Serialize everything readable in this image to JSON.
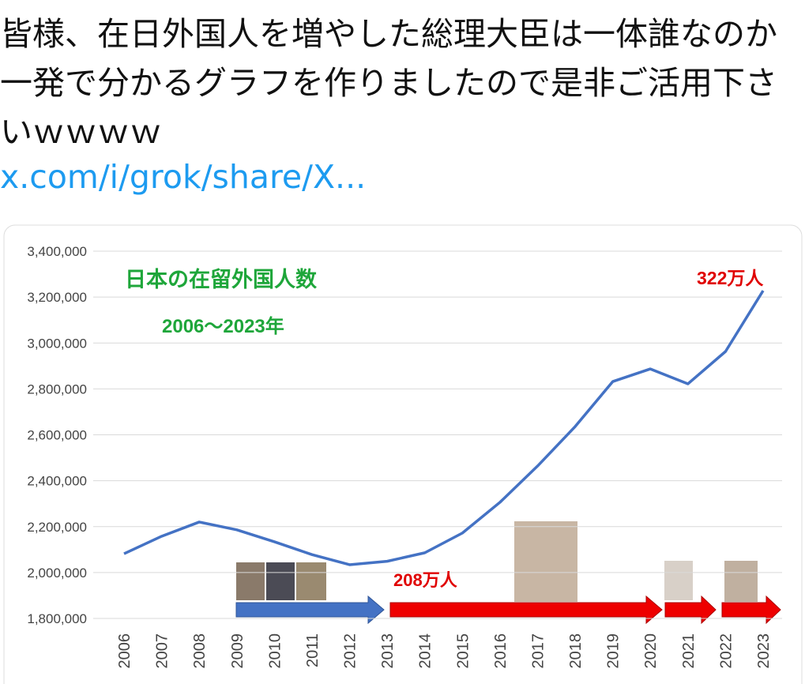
{
  "post": {
    "text": "皆様、在日外国人を増やした総理大臣は一体誰なのか一発で分かるグラフを作りましたので是非ご活用下さいｗｗｗｗ",
    "link": "x.com/i/grok/share/X..."
  },
  "chart_data": {
    "type": "line",
    "annotations": [
      "日本の在留外国人数",
      "2006〜2023年",
      "322万人",
      "208万人"
    ],
    "categories": [
      "2006",
      "2007",
      "2008",
      "2009",
      "2010",
      "2011",
      "2012",
      "2013",
      "2014",
      "2015",
      "2016",
      "2017",
      "2018",
      "2019",
      "2020",
      "2021",
      "2022",
      "2023"
    ],
    "series": [
      {
        "color": "#4472c4",
        "values": [
          2082000,
          2158000,
          2220000,
          2186000,
          2134000,
          2078000,
          2034000,
          2049000,
          2086000,
          2172000,
          2306000,
          2464000,
          2636000,
          2832000,
          2887000,
          2822000,
          2963000,
          3228000
        ]
      }
    ],
    "ylim": [
      1800000,
      3400000
    ],
    "yticks": [
      {
        "value": 1800000,
        "label": "1,800,000"
      },
      {
        "value": 2000000,
        "label": "2,000,000"
      },
      {
        "value": 2200000,
        "label": "2,200,000"
      },
      {
        "value": 2400000,
        "label": "2,400,000"
      },
      {
        "value": 2600000,
        "label": "2,600,000"
      },
      {
        "value": 2800000,
        "label": "2,800,000"
      },
      {
        "value": 3000000,
        "label": "3,000,000"
      },
      {
        "value": 3200000,
        "label": "3,200,000"
      },
      {
        "value": 3400000,
        "label": "3,400,000"
      }
    ],
    "grid": true
  }
}
